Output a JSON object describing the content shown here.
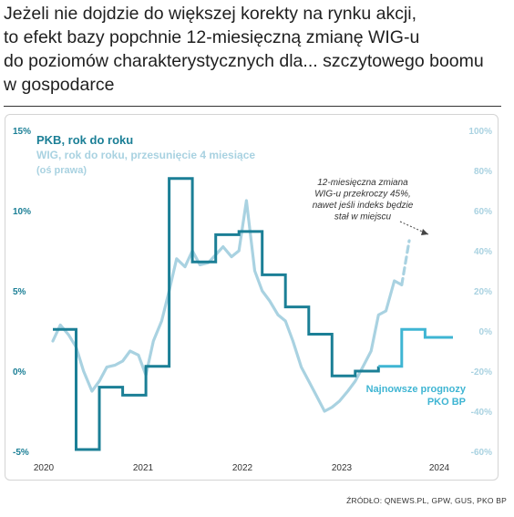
{
  "title_lines": [
    "Jeżeli nie dojdzie do większej korekty na rynku akcji,",
    "to efekt bazy popchnie 12-miesięczną zmianę WIG-u",
    "do poziomów charakterystycznych dla... szczytowego boomu",
    "w gospodarce"
  ],
  "source": "ŹRÓDŁO: QNEWS.PL, GPW, GUS, PKO BP",
  "colors": {
    "pkb": "#1b7f96",
    "wig": "#a9d2e1",
    "forecast": "#3fb5d3",
    "text_dark": "#1b7f96",
    "text_light": "#a9d2e1"
  },
  "chart_data": {
    "type": "line",
    "title": "",
    "legend": {
      "pkb": "PKB, rok do roku",
      "wig": "WIG, rok do roku, przesunięcie 4 miesiące",
      "wig_note": "(oś prawa)",
      "placement": "top-left"
    },
    "annotations": {
      "wig_note": [
        "12-miesięczna zmiana",
        "WIG-u przekroczy 45%,",
        "nawet jeśli indeks będzie",
        "stał w miejscu"
      ],
      "forecast_note": [
        "Najnowsze prognozy",
        "PKO BP"
      ]
    },
    "x_ticks": [
      2020,
      2021,
      2022,
      2023,
      2024
    ],
    "xlim": [
      2020.0,
      2024.3
    ],
    "y_left": {
      "ticks": [
        "15%",
        "10%",
        "5%",
        "0%",
        "-5%"
      ],
      "values": [
        15,
        10,
        5,
        0,
        -5
      ],
      "ylim": [
        -5,
        15
      ]
    },
    "y_right": {
      "ticks": [
        "100%",
        "80%",
        "60%",
        "40%",
        "20%",
        "0%",
        "-20%",
        "-40%",
        "-60%"
      ],
      "values": [
        100,
        80,
        60,
        40,
        20,
        0,
        -20,
        -40,
        -60
      ],
      "ylim": [
        -60,
        100
      ]
    },
    "grid": false,
    "series": [
      {
        "key": "pkb",
        "name": "PKB, rok do roku",
        "axis": "left",
        "step": true,
        "x": [
          2020.0,
          2020.25,
          2020.5,
          2020.75,
          2021.0,
          2021.25,
          2021.5,
          2021.75,
          2022.0,
          2022.25,
          2022.5,
          2022.75,
          2023.0,
          2023.25,
          2023.5
        ],
        "values": [
          2.6,
          -8.0,
          -1.0,
          -1.5,
          0.3,
          12.0,
          6.8,
          8.5,
          8.7,
          6.0,
          4.0,
          2.3,
          -0.3,
          0.0,
          0.3
        ]
      },
      {
        "key": "forecast",
        "name": "Najnowsze prognozy PKO BP",
        "axis": "left",
        "step": true,
        "x": [
          2023.5,
          2023.75,
          2024.0,
          2024.3
        ],
        "values": [
          0.3,
          2.6,
          2.1,
          2.1
        ]
      },
      {
        "key": "wig",
        "name": "WIG, rok do roku, przesunięcie 4 miesiące",
        "axis": "right",
        "x": [
          2020.0,
          2020.08,
          2020.17,
          2020.25,
          2020.33,
          2020.42,
          2020.5,
          2020.58,
          2020.67,
          2020.75,
          2020.83,
          2020.92,
          2021.0,
          2021.08,
          2021.17,
          2021.25,
          2021.33,
          2021.42,
          2021.5,
          2021.58,
          2021.67,
          2021.75,
          2021.83,
          2021.92,
          2022.0,
          2022.08,
          2022.17,
          2022.25,
          2022.33,
          2022.42,
          2022.5,
          2022.58,
          2022.67,
          2022.75,
          2022.83,
          2022.92,
          2023.0,
          2023.08,
          2023.17,
          2023.25,
          2023.33,
          2023.42,
          2023.5,
          2023.58,
          2023.67,
          2023.75,
          2023.83
        ],
        "values": [
          -5,
          3,
          -2,
          -8,
          -20,
          -30,
          -25,
          -18,
          -17,
          -15,
          -10,
          -12,
          -22,
          -5,
          5,
          20,
          36,
          32,
          40,
          33,
          34,
          38,
          42,
          37,
          40,
          65,
          30,
          20,
          15,
          8,
          5,
          -5,
          -18,
          -25,
          -32,
          -40,
          -38,
          -35,
          -30,
          -25,
          -18,
          -10,
          8,
          10,
          25,
          23,
          45
        ]
      }
    ]
  }
}
